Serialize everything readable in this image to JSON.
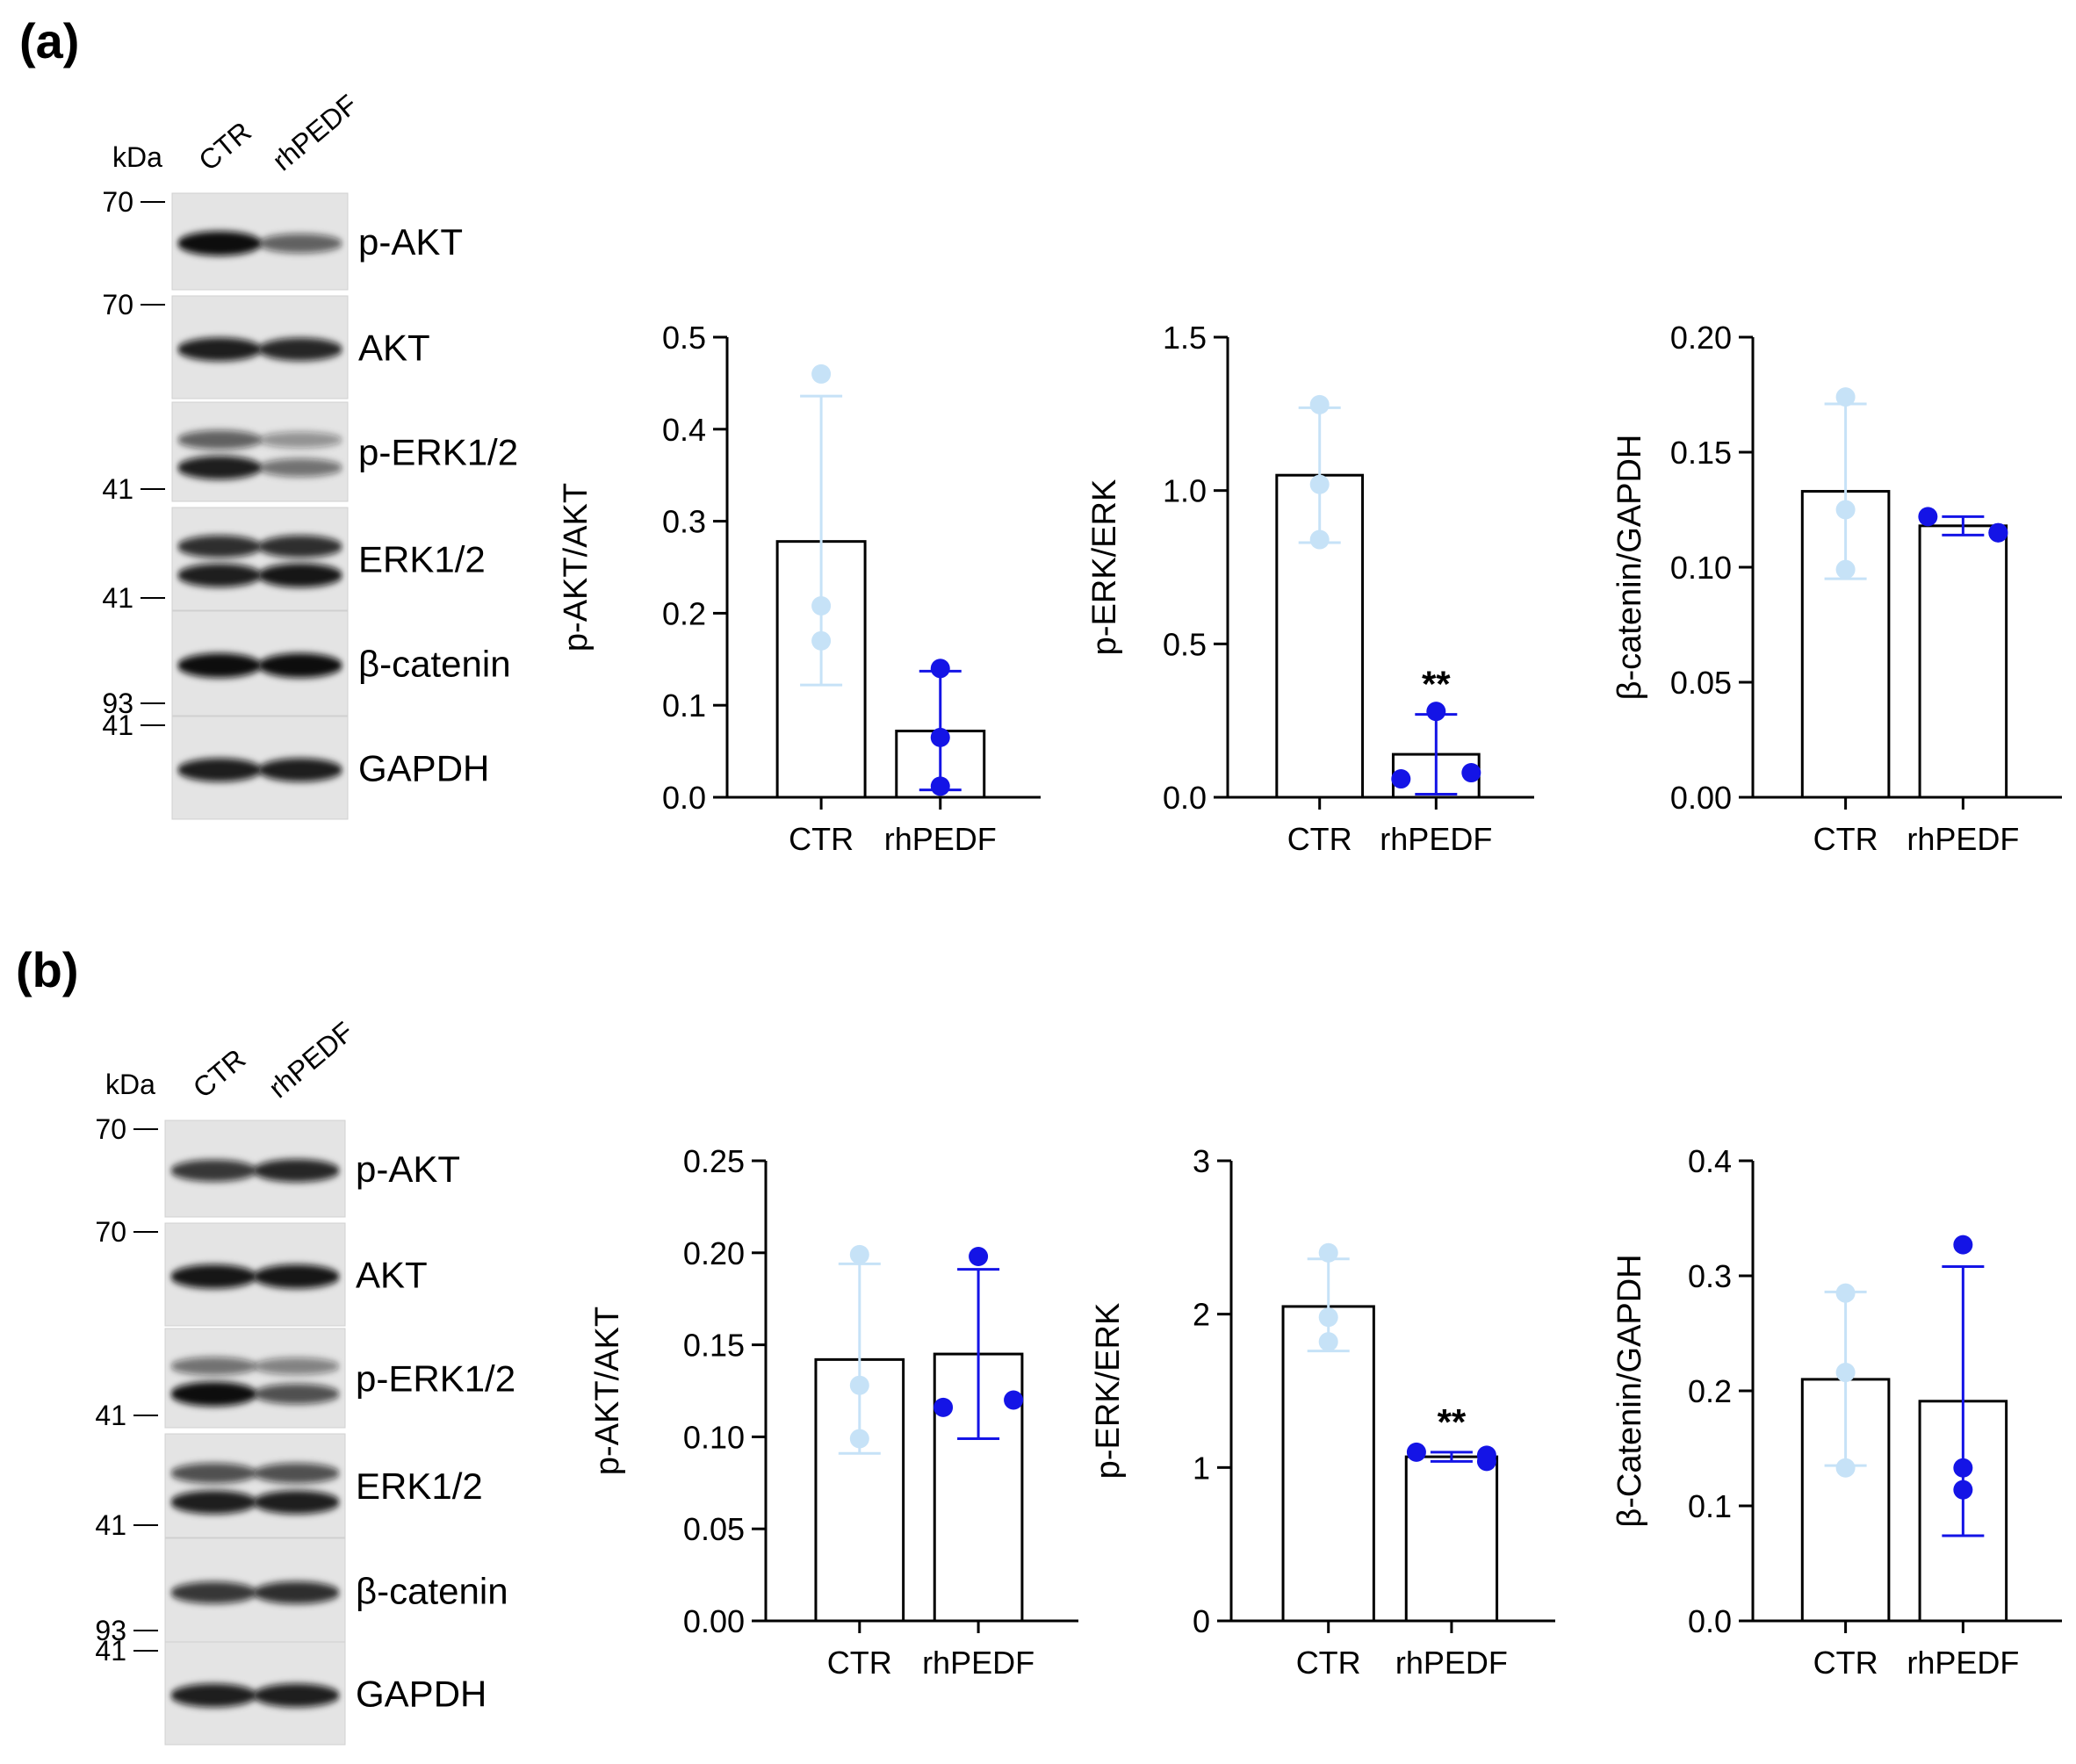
{
  "colors": {
    "ctr": "#c6e2f7",
    "rhpedf": "#1414e6",
    "axis": "#000000",
    "blot_bg": "#e4e4e4",
    "band": "#111111"
  },
  "panels": [
    {
      "label": "(a)",
      "blot": {
        "kda_label": "kDa",
        "lanes": [
          "CTR",
          "rhPEDF"
        ],
        "rows": [
          {
            "protein": "p-AKT",
            "markers": [
              {
                "value": "70",
                "pos": "top"
              }
            ],
            "bands": [
              [
                1.0
              ],
              [
                0.5
              ]
            ]
          },
          {
            "protein": "AKT",
            "markers": [
              {
                "value": "70",
                "pos": "top"
              }
            ],
            "bands": [
              [
                0.9
              ],
              [
                0.85
              ]
            ]
          },
          {
            "protein": "p-ERK1/2",
            "markers": [
              {
                "value": "41",
                "pos": "bottom"
              }
            ],
            "bands": [
              [
                0.5,
                0.9
              ],
              [
                0.2,
                0.4
              ]
            ]
          },
          {
            "protein": "ERK1/2",
            "markers": [
              {
                "value": "41",
                "pos": "bottom"
              }
            ],
            "bands": [
              [
                0.8,
                0.9
              ],
              [
                0.8,
                0.95
              ]
            ]
          },
          {
            "protein": "β-catenin",
            "markers": [
              {
                "value": "93",
                "pos": "bottom"
              }
            ],
            "bands": [
              [
                1.0
              ],
              [
                1.0
              ]
            ]
          },
          {
            "protein": "GAPDH",
            "markers": [
              {
                "value": "41",
                "pos": "top"
              }
            ],
            "bands": [
              [
                0.9
              ],
              [
                0.9
              ]
            ]
          }
        ]
      }
    },
    {
      "label": "(b)",
      "blot": {
        "kda_label": "kDa",
        "lanes": [
          "CTR",
          "rhPEDF"
        ],
        "rows": [
          {
            "protein": "p-AKT",
            "markers": [
              {
                "value": "70",
                "pos": "top"
              }
            ],
            "bands": [
              [
                0.75
              ],
              [
                0.85
              ]
            ]
          },
          {
            "protein": "AKT",
            "markers": [
              {
                "value": "70",
                "pos": "top"
              }
            ],
            "bands": [
              [
                0.95
              ],
              [
                0.95
              ]
            ]
          },
          {
            "protein": "p-ERK1/2",
            "markers": [
              {
                "value": "41",
                "pos": "bottom"
              }
            ],
            "bands": [
              [
                0.4,
                1.0
              ],
              [
                0.3,
                0.6
              ]
            ]
          },
          {
            "protein": "ERK1/2",
            "markers": [
              {
                "value": "41",
                "pos": "bottom"
              }
            ],
            "bands": [
              [
                0.6,
                0.9
              ],
              [
                0.6,
                0.9
              ]
            ]
          },
          {
            "protein": "β-catenin",
            "markers": [
              {
                "value": "93",
                "pos": "bottom"
              }
            ],
            "bands": [
              [
                0.75
              ],
              [
                0.8
              ]
            ]
          },
          {
            "protein": "GAPDH",
            "markers": [
              {
                "value": "41",
                "pos": "top"
              }
            ],
            "bands": [
              [
                0.9
              ],
              [
                0.9
              ]
            ]
          }
        ]
      }
    }
  ],
  "chart_data": [
    {
      "panel": "(a)",
      "type": "bar",
      "ylabel": "p-AKT/AKT",
      "ylim": [
        0,
        0.5
      ],
      "yticks": [
        "0.0",
        "0.1",
        "0.2",
        "0.3",
        "0.4",
        "0.5"
      ],
      "categories": [
        "CTR",
        "rhPEDF"
      ],
      "series": [
        {
          "name": "CTR",
          "mean": 0.278,
          "sd_low": 0.122,
          "sd_high": 0.436,
          "points": [
            0.46,
            0.208,
            0.17
          ],
          "annotation": ""
        },
        {
          "name": "rhPEDF",
          "mean": 0.072,
          "sd_low": 0.008,
          "sd_high": 0.137,
          "points": [
            0.14,
            0.065,
            0.012
          ],
          "annotation": ""
        }
      ]
    },
    {
      "panel": "(a)",
      "type": "bar",
      "ylabel": "p-ERK/ERK",
      "ylim": [
        0,
        1.5
      ],
      "yticks": [
        "0.0",
        "0.5",
        "1.0",
        "1.5"
      ],
      "categories": [
        "CTR",
        "rhPEDF"
      ],
      "series": [
        {
          "name": "CTR",
          "mean": 1.05,
          "sd_low": 0.83,
          "sd_high": 1.27,
          "points": [
            1.28,
            1.02,
            0.84
          ],
          "annotation": ""
        },
        {
          "name": "rhPEDF",
          "mean": 0.14,
          "sd_low": 0.01,
          "sd_high": 0.27,
          "points": [
            0.28,
            0.06,
            0.08
          ],
          "annotation": "**"
        }
      ]
    },
    {
      "panel": "(a)",
      "type": "bar",
      "ylabel": "β-catenin/GAPDH",
      "ylim": [
        0,
        0.2
      ],
      "yticks": [
        "0.00",
        "0.05",
        "0.10",
        "0.15",
        "0.20"
      ],
      "categories": [
        "CTR",
        "rhPEDF"
      ],
      "series": [
        {
          "name": "CTR",
          "mean": 0.133,
          "sd_low": 0.095,
          "sd_high": 0.171,
          "points": [
            0.174,
            0.125,
            0.099
          ],
          "annotation": ""
        },
        {
          "name": "rhPEDF",
          "mean": 0.118,
          "sd_low": 0.114,
          "sd_high": 0.122,
          "points": [
            0.115,
            0.122,
            0.115
          ],
          "annotation": ""
        }
      ]
    },
    {
      "panel": "(b)",
      "type": "bar",
      "ylabel": "p-AKT/AKT",
      "ylim": [
        0,
        0.25
      ],
      "yticks": [
        "0.00",
        "0.05",
        "0.10",
        "0.15",
        "0.20",
        "0.25"
      ],
      "categories": [
        "CTR",
        "rhPEDF"
      ],
      "series": [
        {
          "name": "CTR",
          "mean": 0.142,
          "sd_low": 0.091,
          "sd_high": 0.194,
          "points": [
            0.199,
            0.128,
            0.099
          ],
          "annotation": ""
        },
        {
          "name": "rhPEDF",
          "mean": 0.145,
          "sd_low": 0.099,
          "sd_high": 0.191,
          "points": [
            0.198,
            0.116,
            0.12
          ],
          "annotation": ""
        }
      ]
    },
    {
      "panel": "(b)",
      "type": "bar",
      "ylabel": "p-ERK/ERK",
      "ylim": [
        0,
        3
      ],
      "yticks": [
        "0",
        "1",
        "2",
        "3"
      ],
      "categories": [
        "CTR",
        "rhPEDF"
      ],
      "series": [
        {
          "name": "CTR",
          "mean": 2.05,
          "sd_low": 1.76,
          "sd_high": 2.36,
          "points": [
            2.4,
            1.98,
            1.82
          ],
          "annotation": ""
        },
        {
          "name": "rhPEDF",
          "mean": 1.07,
          "sd_low": 1.04,
          "sd_high": 1.1,
          "points": [
            1.04,
            1.1,
            1.08
          ],
          "annotation": "**"
        }
      ]
    },
    {
      "panel": "(b)",
      "type": "bar",
      "ylabel": "β-Catenin/GAPDH",
      "ylim": [
        0,
        0.4
      ],
      "yticks": [
        "0.0",
        "0.1",
        "0.2",
        "0.3",
        "0.4"
      ],
      "categories": [
        "CTR",
        "rhPEDF"
      ],
      "series": [
        {
          "name": "CTR",
          "mean": 0.21,
          "sd_low": 0.135,
          "sd_high": 0.286,
          "points": [
            0.285,
            0.216,
            0.133
          ],
          "annotation": ""
        },
        {
          "name": "rhPEDF",
          "mean": 0.191,
          "sd_low": 0.074,
          "sd_high": 0.308,
          "points": [
            0.327,
            0.133,
            0.114
          ],
          "annotation": ""
        }
      ]
    }
  ]
}
